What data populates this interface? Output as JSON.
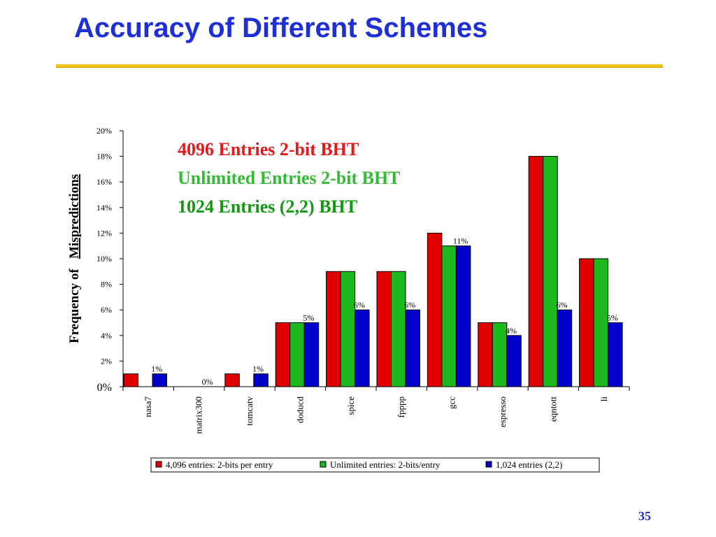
{
  "slide": {
    "title": "Accuracy of Different Schemes",
    "page_number": "35"
  },
  "annotations": [
    {
      "text": "4096 Entries 2-bit BHT",
      "color": "#e41a1a"
    },
    {
      "text": "Unlimited Entries 2-bit BHT",
      "color": "#33bb33"
    },
    {
      "text": "1024 Entries (2,2) BHT",
      "color": "#119911"
    }
  ],
  "chart_data": {
    "type": "bar",
    "title": "",
    "ylabel_prefix": "Frequency of",
    "ylabel_underlined": "Mispredictions",
    "xlabel": "",
    "ylim": [
      0,
      20
    ],
    "yticks": [
      "0%",
      "2%",
      "4%",
      "6%",
      "8%",
      "10%",
      "12%",
      "14%",
      "16%",
      "18%",
      "20%"
    ],
    "categories": [
      "nasa7",
      "matrix300",
      "tomcatv",
      "doducd",
      "spice",
      "fpppp",
      "gcc",
      "espresso",
      "eqntott",
      "li"
    ],
    "series": [
      {
        "name": "4,096 entries:  2-bits per entry",
        "color": "#e00000",
        "values": [
          1,
          0,
          1,
          5,
          9,
          9,
          12,
          5,
          18,
          10
        ]
      },
      {
        "name": "Unlimited entries:  2-bits/entry",
        "color": "#1db81d",
        "values": [
          0,
          0,
          0,
          5,
          9,
          9,
          11,
          5,
          18,
          10
        ]
      },
      {
        "name": "1,024 entries (2,2)",
        "color": "#0000cc",
        "values": [
          1,
          0,
          1,
          5,
          6,
          6,
          11,
          4,
          6,
          5
        ]
      }
    ],
    "data_labels": [
      {
        "category": 0,
        "series": 2,
        "text": "1%"
      },
      {
        "category": 1,
        "series": 2,
        "text": "0%"
      },
      {
        "category": 2,
        "series": 2,
        "text": "1%"
      },
      {
        "category": 3,
        "series": 2,
        "text": "5%"
      },
      {
        "category": 4,
        "series": 2,
        "text": "6%"
      },
      {
        "category": 5,
        "series": 2,
        "text": "6%"
      },
      {
        "category": 6,
        "series": 2,
        "text": "11%"
      },
      {
        "category": 7,
        "series": 2,
        "text": "4%"
      },
      {
        "category": 8,
        "series": 2,
        "text": "6%"
      },
      {
        "category": 9,
        "series": 2,
        "text": "5%"
      }
    ],
    "legend_position": "bottom",
    "grid": false
  }
}
